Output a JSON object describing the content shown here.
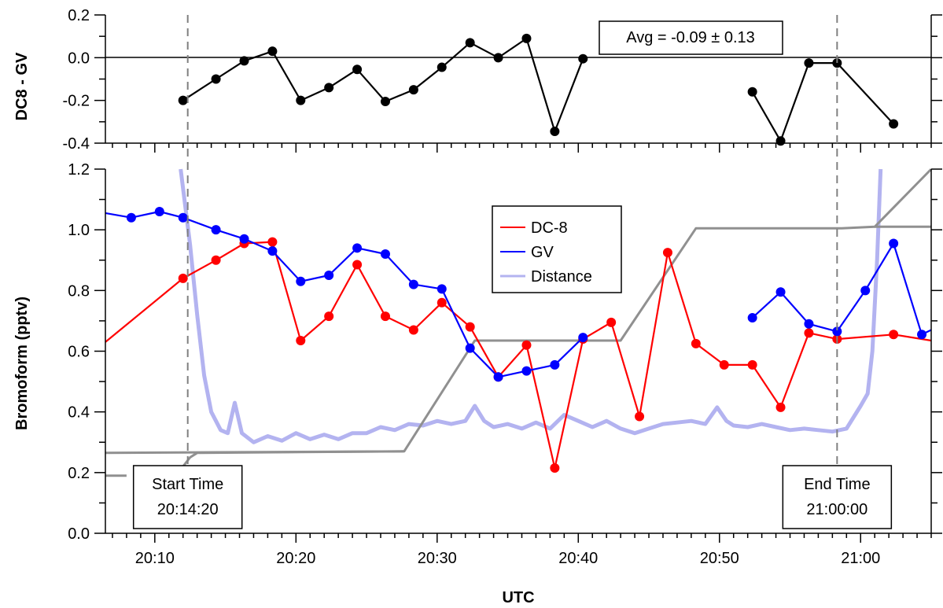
{
  "chart_data": [
    {
      "type": "scatter",
      "panel": "top",
      "ylabel": "DC8 - GV",
      "ylim": [
        -0.4,
        0.2
      ],
      "yticks": [
        "-0.4",
        "-0.2",
        "0.0",
        "0.2"
      ],
      "zero_line": true,
      "annotation": "Avg = -0.09 ± 0.13",
      "series": [
        {
          "color": "#000000",
          "points": [
            [
              "20:12:00",
              -0.2
            ],
            [
              "20:14:20",
              -0.1
            ],
            [
              "20:16:20",
              -0.015
            ],
            [
              "20:18:20",
              0.03
            ],
            [
              "20:20:20",
              -0.2
            ],
            [
              "20:22:20",
              -0.14
            ],
            [
              "20:24:20",
              -0.055
            ],
            [
              "20:26:20",
              -0.205
            ],
            [
              "20:28:20",
              -0.15
            ],
            [
              "20:30:20",
              -0.045
            ],
            [
              "20:32:20",
              0.07
            ],
            [
              "20:34:20",
              0.0
            ],
            [
              "20:36:20",
              0.09
            ],
            [
              "20:38:20",
              -0.345
            ],
            [
              "20:40:20",
              -0.005
            ],
            null,
            [
              "20:52:20",
              -0.16
            ],
            [
              "20:54:20",
              -0.39
            ],
            [
              "20:56:20",
              -0.025
            ],
            [
              "20:58:20",
              -0.025
            ],
            [
              "21:02:20",
              -0.31
            ]
          ]
        }
      ]
    },
    {
      "type": "line",
      "panel": "bottom",
      "xlabel": "UTC",
      "ylabel": "Bromoform (pptv)",
      "xlim": [
        "20:06:30",
        "21:05:00"
      ],
      "xticks": [
        "20:10",
        "20:20",
        "20:30",
        "20:40",
        "20:50",
        "21:00"
      ],
      "ylim": [
        0.0,
        1.2
      ],
      "yticks": [
        "0.0",
        "0.2",
        "0.4",
        "0.6",
        "0.8",
        "1.0",
        "1.2"
      ],
      "legend": {
        "position": "center-top"
      },
      "series": [
        {
          "name": "DC-8",
          "color": "#ff0000",
          "markers": true,
          "points": [
            [
              "20:06:30",
              0.63
            ],
            [
              "20:12:00",
              0.84
            ],
            [
              "20:14:20",
              0.9
            ],
            [
              "20:16:20",
              0.955
            ],
            [
              "20:18:20",
              0.96
            ],
            [
              "20:20:20",
              0.635
            ],
            [
              "20:22:20",
              0.715
            ],
            [
              "20:24:20",
              0.885
            ],
            [
              "20:26:20",
              0.715
            ],
            [
              "20:28:20",
              0.67
            ],
            [
              "20:30:20",
              0.76
            ],
            [
              "20:32:20",
              0.68
            ],
            [
              "20:34:20",
              0.515
            ],
            [
              "20:36:20",
              0.62
            ],
            [
              "20:38:20",
              0.215
            ],
            [
              "20:40:20",
              0.64
            ],
            [
              "20:42:20",
              0.695
            ],
            [
              "20:44:20",
              0.385
            ],
            [
              "20:46:20",
              0.925
            ],
            [
              "20:48:20",
              0.625
            ],
            [
              "20:50:20",
              0.555
            ],
            [
              "20:52:20",
              0.555
            ],
            [
              "20:54:20",
              0.415
            ],
            [
              "20:56:20",
              0.66
            ],
            [
              "20:58:20",
              0.64
            ],
            [
              "21:02:20",
              0.655
            ],
            [
              "21:05:00",
              0.635
            ]
          ]
        },
        {
          "name": "GV",
          "color": "#0000ff",
          "markers": true,
          "points": [
            [
              "20:06:30",
              1.055
            ],
            [
              "20:08:20",
              1.04
            ],
            [
              "20:10:20",
              1.06
            ],
            [
              "20:12:00",
              1.04
            ],
            [
              "20:14:20",
              1.0
            ],
            [
              "20:16:20",
              0.97
            ],
            [
              "20:18:20",
              0.93
            ],
            [
              "20:20:20",
              0.83
            ],
            [
              "20:22:20",
              0.85
            ],
            [
              "20:24:20",
              0.94
            ],
            [
              "20:26:20",
              0.92
            ],
            [
              "20:28:20",
              0.82
            ],
            [
              "20:30:20",
              0.805
            ],
            [
              "20:32:20",
              0.61
            ],
            [
              "20:34:20",
              0.515
            ],
            [
              "20:36:20",
              0.535
            ],
            [
              "20:38:20",
              0.555
            ],
            [
              "20:40:20",
              0.645
            ],
            null,
            [
              "20:52:20",
              0.71
            ],
            [
              "20:54:20",
              0.795
            ],
            [
              "20:56:20",
              0.69
            ],
            [
              "20:58:20",
              0.665
            ],
            [
              "21:00:20",
              0.8
            ],
            [
              "21:02:20",
              0.955
            ],
            [
              "21:04:20",
              0.655
            ],
            [
              "21:05:00",
              0.67
            ]
          ]
        },
        {
          "name": "Distance",
          "color": "#b3b3f0",
          "markers": false,
          "points": [
            [
              "20:11:50",
              1.2
            ],
            [
              "20:12:30",
              0.95
            ],
            [
              "20:13:00",
              0.72
            ],
            [
              "20:13:30",
              0.52
            ],
            [
              "20:14:00",
              0.4
            ],
            [
              "20:14:40",
              0.34
            ],
            [
              "20:15:10",
              0.33
            ],
            [
              "20:15:40",
              0.43
            ],
            [
              "20:16:10",
              0.33
            ],
            [
              "20:17:00",
              0.3
            ],
            [
              "20:18:00",
              0.32
            ],
            [
              "20:19:00",
              0.305
            ],
            [
              "20:20:00",
              0.33
            ],
            [
              "20:21:00",
              0.31
            ],
            [
              "20:22:00",
              0.325
            ],
            [
              "20:23:00",
              0.31
            ],
            [
              "20:24:00",
              0.33
            ],
            [
              "20:25:00",
              0.33
            ],
            [
              "20:26:00",
              0.35
            ],
            [
              "20:27:00",
              0.34
            ],
            [
              "20:28:00",
              0.36
            ],
            [
              "20:29:00",
              0.355
            ],
            [
              "20:30:00",
              0.37
            ],
            [
              "20:31:00",
              0.36
            ],
            [
              "20:32:00",
              0.37
            ],
            [
              "20:32:40",
              0.42
            ],
            [
              "20:33:20",
              0.37
            ],
            [
              "20:34:00",
              0.35
            ],
            [
              "20:35:00",
              0.36
            ],
            [
              "20:36:00",
              0.345
            ],
            [
              "20:37:00",
              0.365
            ],
            [
              "20:38:00",
              0.345
            ],
            [
              "20:39:00",
              0.39
            ],
            [
              "20:40:00",
              0.37
            ],
            [
              "20:41:00",
              0.35
            ],
            [
              "20:42:00",
              0.37
            ],
            [
              "20:43:00",
              0.345
            ],
            [
              "20:44:00",
              0.33
            ],
            [
              "20:45:00",
              0.345
            ],
            [
              "20:46:00",
              0.36
            ],
            [
              "20:47:00",
              0.365
            ],
            [
              "20:48:00",
              0.37
            ],
            [
              "20:49:00",
              0.36
            ],
            [
              "20:49:50",
              0.415
            ],
            [
              "20:50:30",
              0.37
            ],
            [
              "20:51:00",
              0.355
            ],
            [
              "20:52:00",
              0.35
            ],
            [
              "20:53:00",
              0.36
            ],
            [
              "20:54:00",
              0.35
            ],
            [
              "20:55:00",
              0.34
            ],
            [
              "20:56:00",
              0.345
            ],
            [
              "20:57:00",
              0.34
            ],
            [
              "20:58:00",
              0.335
            ],
            [
              "20:59:00",
              0.345
            ],
            [
              "21:00:00",
              0.42
            ],
            [
              "21:00:30",
              0.46
            ],
            [
              "21:00:50",
              0.6
            ],
            [
              "21:01:10",
              0.9
            ],
            [
              "21:01:25",
              1.2
            ]
          ]
        },
        {
          "color": "#909090",
          "markers": false,
          "points": [
            [
              "20:06:30",
              0.19
            ],
            [
              "20:08:00",
              0.19
            ],
            null,
            [
              "20:11:40",
              0.2
            ],
            [
              "20:12:00",
              0.22
            ],
            [
              "20:12:30",
              0.25
            ],
            [
              "20:13:00",
              0.265
            ],
            [
              "20:27:40",
              0.27
            ],
            [
              "20:32:40",
              0.635
            ],
            [
              "20:43:00",
              0.635
            ],
            [
              "20:48:20",
              1.005
            ],
            [
              "20:58:40",
              1.005
            ],
            [
              "21:01:00",
              1.01
            ],
            [
              "21:05:00",
              1.2
            ]
          ]
        },
        {
          "color": "#909090",
          "markers": false,
          "points": [
            [
              "20:06:30",
              0.265
            ],
            [
              "20:27:40",
              0.27
            ],
            null,
            [
              "21:01:00",
              1.01
            ],
            [
              "21:05:00",
              1.01
            ]
          ]
        }
      ],
      "vertical_markers": [
        {
          "x": "20:12:20",
          "label_line1": "Start Time",
          "label_line2": "20:14:20"
        },
        {
          "x": "20:58:20",
          "label_line1": "End Time",
          "label_line2": "21:00:00"
        }
      ]
    }
  ]
}
